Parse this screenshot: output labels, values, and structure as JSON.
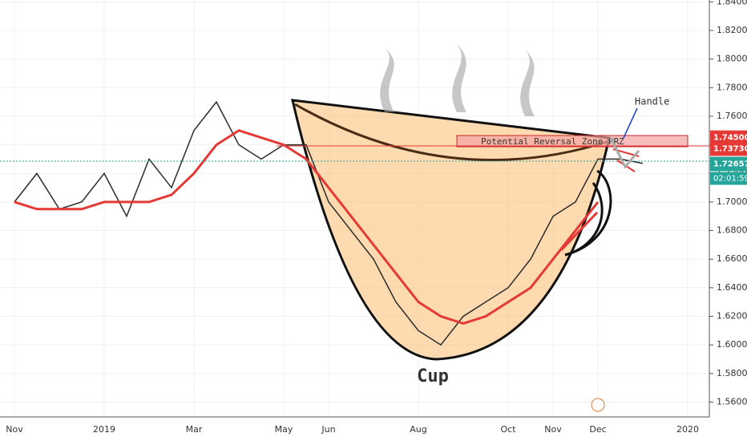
{
  "chart_data": {
    "type": "line",
    "categories": [
      "Nov",
      null,
      null,
      null,
      "2019",
      null,
      null,
      null,
      "Mar",
      null,
      null,
      null,
      "May",
      null,
      "Jun",
      null,
      null,
      null,
      "Aug",
      null,
      null,
      null,
      "Oct",
      null,
      "Nov",
      null,
      "Dec",
      null,
      null,
      null,
      "2020"
    ],
    "series": [
      {
        "color": "#2b2b2b",
        "values": [
          1.7,
          1.72,
          1.695,
          1.7,
          1.72,
          1.69,
          1.73,
          1.71,
          1.75,
          1.77,
          1.74,
          1.73,
          1.74,
          1.74,
          1.7,
          1.68,
          1.66,
          1.63,
          1.61,
          1.6,
          1.62,
          1.63,
          1.64,
          1.66,
          1.69,
          1.7,
          1.73,
          1.73,
          1.727,
          null,
          null
        ]
      },
      {
        "color": "#e53935",
        "values": [
          1.7,
          1.695,
          1.695,
          1.695,
          1.7,
          1.7,
          1.7,
          1.705,
          1.72,
          1.74,
          1.75,
          1.745,
          1.74,
          1.73,
          1.71,
          1.69,
          1.67,
          1.65,
          1.63,
          1.62,
          1.615,
          1.62,
          1.63,
          1.64,
          1.66,
          1.68,
          1.7,
          null,
          null,
          null,
          null
        ]
      }
    ],
    "ylim": [
      1.5496,
      1.8413
    ],
    "yticks": [
      {
        "value": 1.56,
        "label": "1.56000"
      },
      {
        "value": 1.58,
        "label": "1.58000"
      },
      {
        "value": 1.6,
        "label": "1.60000"
      },
      {
        "value": 1.62,
        "label": "1.62000"
      },
      {
        "value": 1.64,
        "label": "1.64000"
      },
      {
        "value": 1.66,
        "label": "1.66000"
      },
      {
        "value": 1.68,
        "label": "1.68000"
      },
      {
        "value": 1.7,
        "label": "1.70000"
      },
      {
        "value": 1.72,
        "label": "1.72000"
      },
      {
        "value": 1.74,
        "label": "1.74000"
      },
      {
        "value": 1.76,
        "label": "1.76000"
      },
      {
        "value": 1.78,
        "label": "1.78000"
      },
      {
        "value": 1.8,
        "label": "1.80000"
      },
      {
        "value": 1.82,
        "label": "1.82000"
      },
      {
        "value": 1.84,
        "label": "1.84000"
      }
    ],
    "grid": true,
    "price_labels": [
      {
        "value": 1.745,
        "label": "1.74500",
        "color": "#e53935"
      },
      {
        "value": 1.7373,
        "label": "1.73730",
        "color": "#e53935"
      },
      {
        "value": 1.72657,
        "label": "1.72657",
        "color": "#26a69a"
      }
    ],
    "countdown": "02:01:59",
    "annotations": {
      "zone": "Potential Reversal Zone PRZ",
      "handle": "Handle",
      "cup": "Cup"
    }
  }
}
